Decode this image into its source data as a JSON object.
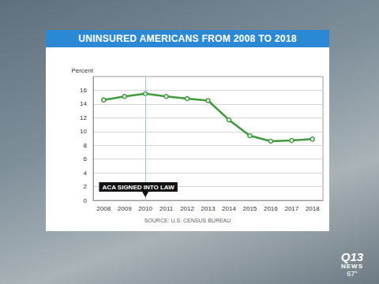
{
  "chart_data": {
    "type": "line",
    "title": "UNINSURED AMERICANS FROM 2008 TO 2018",
    "y_label": "Percent",
    "source": "SOURCE: U.S. CENSUS BUREAU",
    "categories": [
      "2008",
      "2009",
      "2010",
      "2011",
      "2012",
      "2013",
      "2014",
      "2015",
      "2016",
      "2017",
      "2018"
    ],
    "values": [
      14.6,
      15.1,
      15.5,
      15.1,
      14.8,
      14.5,
      11.7,
      9.4,
      8.6,
      8.7,
      8.9
    ],
    "color": "#3e9a3a",
    "marker": "circle",
    "line_style": "solid",
    "ylim": [
      0,
      18
    ],
    "yticks": [
      0,
      2,
      4,
      6,
      8,
      10,
      12,
      14,
      16
    ],
    "grid": true,
    "annotations": [
      {
        "text": "ACA SIGNED INTO LAW",
        "x": "2010"
      }
    ]
  },
  "station": {
    "logo": "Q13",
    "name": "NEWS",
    "temperature": "67°"
  }
}
